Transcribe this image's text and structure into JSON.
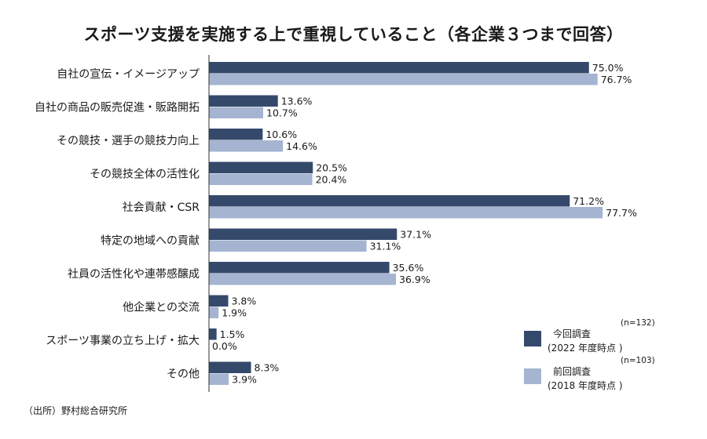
{
  "colors": {
    "current": "#35496b",
    "previous": "#a5b4d1",
    "axis": "#333333"
  },
  "chart_data": {
    "type": "bar",
    "orientation": "horizontal",
    "title": "スポーツ支援を実施する上で重視していること（各企業３つまで回答）",
    "categories": [
      "自社の宣伝・イメージアップ",
      "自社の商品の販売促進・販路開拓",
      "その競技・選手の競技力向上",
      "その競技全体の活性化",
      "社会貢献・CSR",
      "特定の地域への貢献",
      "社員の活性化や連帯感醸成",
      "他企業との交流",
      "スポーツ事業の立ち上げ・拡大",
      "その他"
    ],
    "series": [
      {
        "name": "今回調査",
        "period": "(2022 年度時点 )",
        "n": "(n=132)",
        "values": [
          75.0,
          13.6,
          10.6,
          20.5,
          71.2,
          37.1,
          35.6,
          3.8,
          1.5,
          8.3
        ]
      },
      {
        "name": "前回調査",
        "period": "(2018 年度時点 )",
        "n": "(n=103)",
        "values": [
          76.7,
          10.7,
          14.6,
          20.4,
          77.7,
          31.1,
          36.9,
          1.9,
          0.0,
          3.9
        ]
      }
    ],
    "value_format": "percent_1dp",
    "xlim": [
      0,
      100
    ],
    "grid": false,
    "legend_position": "bottom-right"
  },
  "source": "（出所）野村総合研究所"
}
